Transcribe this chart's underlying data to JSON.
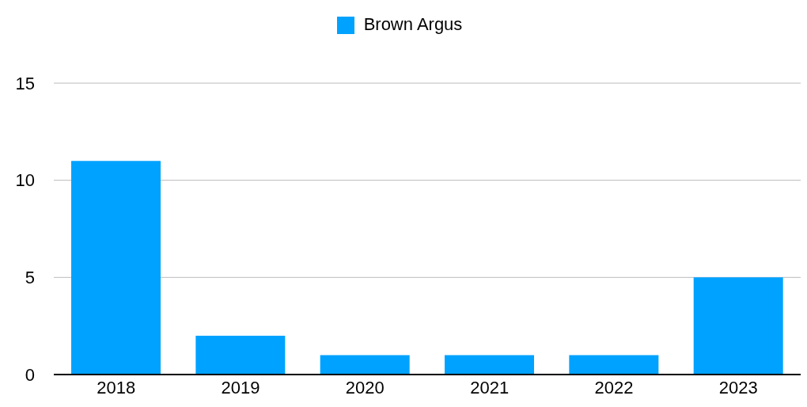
{
  "chart_data": {
    "type": "bar",
    "categories": [
      "2018",
      "2019",
      "2020",
      "2021",
      "2022",
      "2023"
    ],
    "series": [
      {
        "name": "Brown Argus",
        "color": "#00a2ff",
        "values": [
          11,
          2,
          1,
          1,
          1,
          5
        ]
      }
    ],
    "ylim": [
      0,
      15
    ],
    "yticks": [
      0,
      5,
      10,
      15
    ],
    "grid": "y",
    "legend": "top"
  }
}
